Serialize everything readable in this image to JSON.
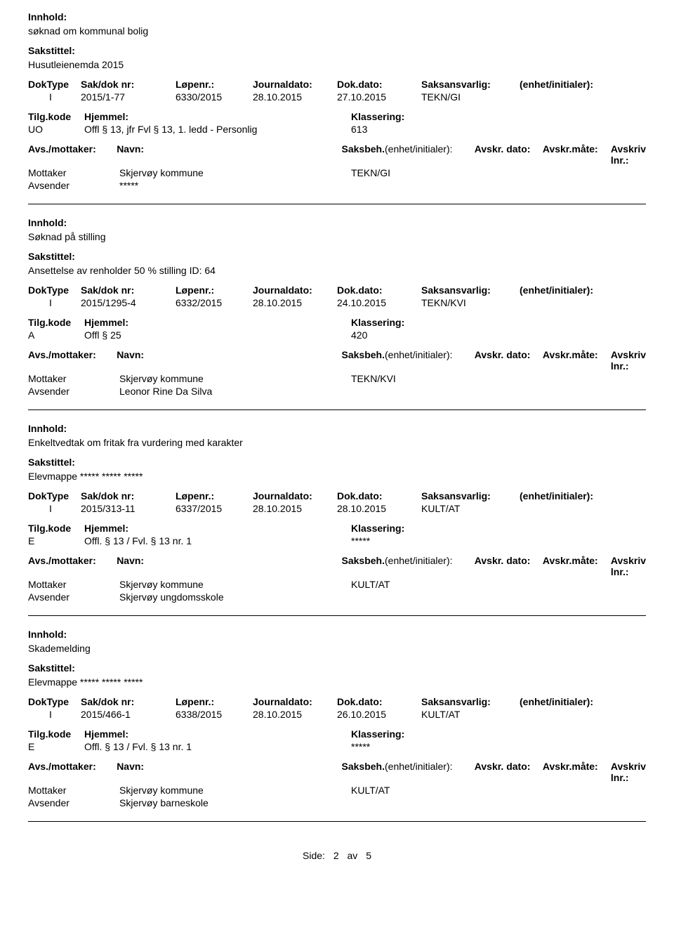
{
  "labels": {
    "innhold": "Innhold:",
    "sakstittel": "Sakstittel:",
    "doktype": "DokType",
    "sakdoknr": "Sak/dok nr:",
    "lopenr": "Løpenr.:",
    "journaldato": "Journaldato:",
    "dokdato": "Dok.dato:",
    "saksansvarlig": "Saksansvarlig:",
    "enhet": "(enhet/initialer):",
    "tilgkode": "Tilg.kode",
    "hjemmel": "Hjemmel:",
    "klassering": "Klassering:",
    "avsmottaker": "Avs./mottaker:",
    "navn": "Navn:",
    "saksbeh": "Saksbeh.",
    "saksbeh_enhet": "(enhet/initialer):",
    "avskr_dato": "Avskr. dato:",
    "avskr_mate": "Avskr.måte:",
    "avskriv_lnr": "Avskriv lnr.:",
    "mottaker": "Mottaker",
    "avsender": "Avsender"
  },
  "records": [
    {
      "innhold": "søknad om kommunal bolig",
      "sakstittel": "Husutleienemda 2015",
      "doktype": "I",
      "sakdoknr": "2015/1-77",
      "lopenr": "6330/2015",
      "journaldato": "28.10.2015",
      "dokdato": "27.10.2015",
      "saksansvarlig": "TEKN/GI",
      "tilgkode": "UO",
      "hjemmel": "Offl § 13, jfr Fvl § 13, 1. ledd - Personlig",
      "klassering": "613",
      "mottaker_navn": "Skjervøy kommune",
      "mottaker_saksbeh": "TEKN/GI",
      "avsender_navn": "*****"
    },
    {
      "innhold": "Søknad på stilling",
      "sakstittel": "Ansettelse av renholder 50 % stilling       ID:  64",
      "doktype": "I",
      "sakdoknr": "2015/1295-4",
      "lopenr": "6332/2015",
      "journaldato": "28.10.2015",
      "dokdato": "24.10.2015",
      "saksansvarlig": "TEKN/KVI",
      "tilgkode": "A",
      "hjemmel": "Offl § 25",
      "klassering": "420",
      "mottaker_navn": "Skjervøy kommune",
      "mottaker_saksbeh": "TEKN/KVI",
      "avsender_navn": "Leonor Rine Da Silva"
    },
    {
      "innhold": "Enkeltvedtak om fritak fra vurdering med karakter",
      "sakstittel": "Elevmappe ***** ***** *****",
      "doktype": "I",
      "sakdoknr": "2015/313-11",
      "lopenr": "6337/2015",
      "journaldato": "28.10.2015",
      "dokdato": "28.10.2015",
      "saksansvarlig": "KULT/AT",
      "tilgkode": "E",
      "hjemmel": "Offl. § 13 / Fvl. § 13 nr. 1",
      "klassering": "*****",
      "mottaker_navn": "Skjervøy kommune",
      "mottaker_saksbeh": "KULT/AT",
      "avsender_navn": "Skjervøy ungdomsskole"
    },
    {
      "innhold": "Skademelding",
      "sakstittel": "Elevmappe ***** ***** *****",
      "doktype": "I",
      "sakdoknr": "2015/466-1",
      "lopenr": "6338/2015",
      "journaldato": "28.10.2015",
      "dokdato": "26.10.2015",
      "saksansvarlig": "KULT/AT",
      "tilgkode": "E",
      "hjemmel": "Offl. § 13 / Fvl. § 13 nr. 1",
      "klassering": "*****",
      "mottaker_navn": "Skjervøy kommune",
      "mottaker_saksbeh": "KULT/AT",
      "avsender_navn": "Skjervøy barneskole"
    }
  ],
  "footer": {
    "side": "Side:",
    "page": "2",
    "av": "av",
    "total": "5"
  }
}
